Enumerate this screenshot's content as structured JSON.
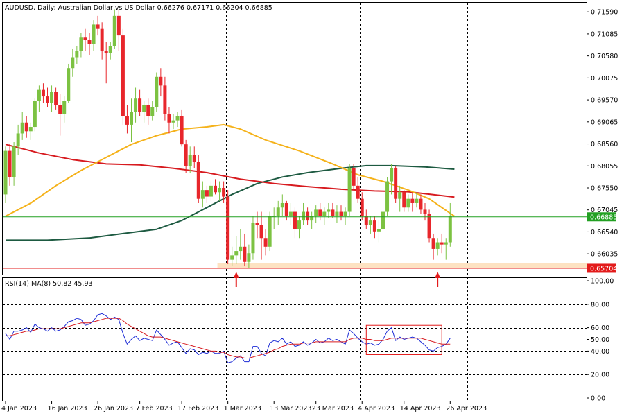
{
  "header": {
    "symbol_line": "AUDUSD, Daily:  Australian Dollar vs US Dollar  0.66276  0.67171  0.66204  0.66885"
  },
  "rsi_header": "RSI(14) MA(8) 50.82 45.93",
  "price_tags": {
    "current": "0.66885",
    "support": "0.65704"
  },
  "colors": {
    "bull": "#7cc242",
    "bear": "#e8262b",
    "ma50": "#f5b21a",
    "ma100": "#d71a1f",
    "ma200": "#1d5a41",
    "rsi": "#1c2bd6",
    "rsi_ma": "#d71a1f",
    "current_line": "#22a022",
    "support_line": "#e31b1b",
    "support_zone": "#fde2c2",
    "highlight_box": "#e31b1b",
    "arrow": "#e31b1b"
  },
  "chart_data": [
    {
      "type": "candlestick",
      "title": "AUDUSD, Daily:  Australian Dollar vs US Dollar",
      "ylim": [
        0.6556,
        0.718
      ],
      "y_ticks": [
        "0.71590",
        "0.71085",
        "0.70580",
        "0.70075",
        "0.69570",
        "0.69065",
        "0.68560",
        "0.68055",
        "0.67550",
        "0.67045",
        "0.66540",
        "0.66035"
      ],
      "x_ticks": [
        "4 Jan 2023",
        "16 Jan 2023",
        "26 Jan 2023",
        "7 Feb 2023",
        "17 Feb 2023",
        "1 Mar 2023",
        "13 Mar 2023",
        "23 Mar 2023",
        "4 Apr 2023",
        "14 Apr 2023",
        "26 Apr 2023"
      ],
      "x_tick_index": [
        0,
        11,
        22,
        32,
        42,
        53,
        64,
        74,
        85,
        95,
        106
      ],
      "month_separators": [
        0,
        21.5,
        52.5,
        84.5,
        110
      ],
      "ohlc": [
        [
          0.674,
          0.685,
          0.672,
          0.684
        ],
        [
          0.684,
          0.6855,
          0.676,
          0.678
        ],
        [
          0.678,
          0.686,
          0.676,
          0.685
        ],
        [
          0.685,
          0.69,
          0.683,
          0.688
        ],
        [
          0.688,
          0.693,
          0.6865,
          0.6905
        ],
        [
          0.6905,
          0.692,
          0.687,
          0.6885
        ],
        [
          0.6885,
          0.6905,
          0.6865,
          0.6895
        ],
        [
          0.6895,
          0.696,
          0.6885,
          0.6955
        ],
        [
          0.6955,
          0.699,
          0.693,
          0.698
        ],
        [
          0.698,
          0.6995,
          0.695,
          0.6965
        ],
        [
          0.6965,
          0.6985,
          0.694,
          0.695
        ],
        [
          0.695,
          0.699,
          0.693,
          0.6975
        ],
        [
          0.6975,
          0.6985,
          0.6935,
          0.6945
        ],
        [
          0.6945,
          0.697,
          0.6875,
          0.6925
        ],
        [
          0.6925,
          0.6965,
          0.6905,
          0.6955
        ],
        [
          0.6955,
          0.704,
          0.695,
          0.703
        ],
        [
          0.703,
          0.7075,
          0.701,
          0.7055
        ],
        [
          0.7055,
          0.708,
          0.704,
          0.707
        ],
        [
          0.707,
          0.711,
          0.7055,
          0.71
        ],
        [
          0.71,
          0.712,
          0.707,
          0.7095
        ],
        [
          0.7095,
          0.711,
          0.706,
          0.7085
        ],
        [
          0.7085,
          0.714,
          0.707,
          0.713
        ],
        [
          0.713,
          0.715,
          0.7105,
          0.712
        ],
        [
          0.712,
          0.7135,
          0.705,
          0.707
        ],
        [
          0.707,
          0.709,
          0.6995,
          0.7065
        ],
        [
          0.7065,
          0.709,
          0.705,
          0.708
        ],
        [
          0.708,
          0.7165,
          0.7075,
          0.715
        ],
        [
          0.715,
          0.7165,
          0.707,
          0.7105
        ],
        [
          0.7105,
          0.712,
          0.69,
          0.692
        ],
        [
          0.692,
          0.6945,
          0.688,
          0.69
        ],
        [
          0.69,
          0.696,
          0.686,
          0.693
        ],
        [
          0.693,
          0.6985,
          0.6905,
          0.696
        ],
        [
          0.696,
          0.698,
          0.692,
          0.693
        ],
        [
          0.693,
          0.6955,
          0.6905,
          0.6945
        ],
        [
          0.6945,
          0.696,
          0.69,
          0.692
        ],
        [
          0.692,
          0.6955,
          0.691,
          0.694
        ],
        [
          0.694,
          0.702,
          0.693,
          0.701
        ],
        [
          0.701,
          0.703,
          0.6965,
          0.699
        ],
        [
          0.699,
          0.701,
          0.691,
          0.6925
        ],
        [
          0.6925,
          0.694,
          0.688,
          0.6905
        ],
        [
          0.6905,
          0.6925,
          0.689,
          0.691
        ],
        [
          0.691,
          0.693,
          0.6895,
          0.692
        ],
        [
          0.692,
          0.6935,
          0.685,
          0.6855
        ],
        [
          0.6855,
          0.6865,
          0.679,
          0.6805
        ],
        [
          0.6805,
          0.685,
          0.679,
          0.683
        ],
        [
          0.683,
          0.685,
          0.68,
          0.6815
        ],
        [
          0.6815,
          0.683,
          0.672,
          0.673
        ],
        [
          0.673,
          0.677,
          0.671,
          0.675
        ],
        [
          0.675,
          0.676,
          0.672,
          0.6735
        ],
        [
          0.6735,
          0.677,
          0.6725,
          0.676
        ],
        [
          0.676,
          0.6775,
          0.674,
          0.6745
        ],
        [
          0.6745,
          0.677,
          0.6725,
          0.6755
        ],
        [
          0.6755,
          0.677,
          0.672,
          0.6735
        ],
        [
          0.6735,
          0.675,
          0.658,
          0.659
        ],
        [
          0.659,
          0.662,
          0.6575,
          0.66
        ],
        [
          0.66,
          0.6645,
          0.658,
          0.661
        ],
        [
          0.661,
          0.666,
          0.659,
          0.662
        ],
        [
          0.662,
          0.665,
          0.6575,
          0.6585
        ],
        [
          0.6585,
          0.6625,
          0.657,
          0.6605
        ],
        [
          0.6605,
          0.669,
          0.659,
          0.6675
        ],
        [
          0.6675,
          0.67,
          0.664,
          0.667
        ],
        [
          0.667,
          0.67,
          0.659,
          0.664
        ],
        [
          0.664,
          0.666,
          0.66,
          0.662
        ],
        [
          0.662,
          0.67,
          0.661,
          0.669
        ],
        [
          0.669,
          0.671,
          0.666,
          0.669
        ],
        [
          0.669,
          0.6725,
          0.667,
          0.671
        ],
        [
          0.671,
          0.674,
          0.669,
          0.672
        ],
        [
          0.672,
          0.6725,
          0.668,
          0.669
        ],
        [
          0.669,
          0.672,
          0.667,
          0.67
        ],
        [
          0.67,
          0.671,
          0.664,
          0.666
        ],
        [
          0.666,
          0.669,
          0.664,
          0.668
        ],
        [
          0.668,
          0.672,
          0.667,
          0.67
        ],
        [
          0.67,
          0.671,
          0.667,
          0.668
        ],
        [
          0.668,
          0.67,
          0.666,
          0.669
        ],
        [
          0.669,
          0.6715,
          0.6675,
          0.6705
        ],
        [
          0.6705,
          0.672,
          0.668,
          0.669
        ],
        [
          0.669,
          0.671,
          0.667,
          0.67
        ],
        [
          0.67,
          0.672,
          0.6685,
          0.6705
        ],
        [
          0.6705,
          0.672,
          0.6685,
          0.669
        ],
        [
          0.669,
          0.6715,
          0.6675,
          0.67
        ],
        [
          0.67,
          0.6715,
          0.668,
          0.669
        ],
        [
          0.669,
          0.671,
          0.667,
          0.67
        ],
        [
          0.67,
          0.681,
          0.669,
          0.68
        ],
        [
          0.68,
          0.681,
          0.675,
          0.676
        ],
        [
          0.676,
          0.678,
          0.672,
          0.673
        ],
        [
          0.673,
          0.6745,
          0.668,
          0.669
        ],
        [
          0.669,
          0.6705,
          0.666,
          0.667
        ],
        [
          0.667,
          0.669,
          0.665,
          0.668
        ],
        [
          0.668,
          0.669,
          0.664,
          0.6655
        ],
        [
          0.6655,
          0.668,
          0.663,
          0.666
        ],
        [
          0.666,
          0.671,
          0.665,
          0.67
        ],
        [
          0.67,
          0.678,
          0.669,
          0.677
        ],
        [
          0.677,
          0.681,
          0.674,
          0.68
        ],
        [
          0.68,
          0.6805,
          0.672,
          0.673
        ],
        [
          0.673,
          0.676,
          0.67,
          0.6745
        ],
        [
          0.6745,
          0.675,
          0.67,
          0.671
        ],
        [
          0.671,
          0.674,
          0.67,
          0.673
        ],
        [
          0.673,
          0.6745,
          0.67,
          0.672
        ],
        [
          0.672,
          0.6745,
          0.671,
          0.673
        ],
        [
          0.673,
          0.674,
          0.6695,
          0.6705
        ],
        [
          0.6705,
          0.672,
          0.668,
          0.6695
        ],
        [
          0.6695,
          0.6705,
          0.663,
          0.664
        ],
        [
          0.664,
          0.665,
          0.659,
          0.6615
        ],
        [
          0.6615,
          0.664,
          0.66,
          0.663
        ],
        [
          0.663,
          0.665,
          0.6605,
          0.6625
        ],
        [
          0.6625,
          0.664,
          0.659,
          0.663
        ],
        [
          0.663,
          0.672,
          0.662,
          0.669
        ]
      ],
      "ma50": [
        [
          0,
          0.669
        ],
        [
          6,
          0.672
        ],
        [
          12,
          0.676
        ],
        [
          18,
          0.6795
        ],
        [
          24,
          0.6825
        ],
        [
          30,
          0.6855
        ],
        [
          36,
          0.6875
        ],
        [
          42,
          0.689
        ],
        [
          48,
          0.6895
        ],
        [
          52,
          0.69
        ],
        [
          56,
          0.689
        ],
        [
          62,
          0.6865
        ],
        [
          70,
          0.684
        ],
        [
          78,
          0.681
        ],
        [
          84,
          0.6785
        ],
        [
          90,
          0.677
        ],
        [
          96,
          0.675
        ],
        [
          101,
          0.673
        ],
        [
          107,
          0.669
        ]
      ],
      "ma100": [
        [
          0,
          0.6855
        ],
        [
          8,
          0.6835
        ],
        [
          16,
          0.682
        ],
        [
          24,
          0.681
        ],
        [
          32,
          0.6808
        ],
        [
          40,
          0.68
        ],
        [
          48,
          0.679
        ],
        [
          56,
          0.6775
        ],
        [
          64,
          0.6765
        ],
        [
          72,
          0.6758
        ],
        [
          80,
          0.6752
        ],
        [
          88,
          0.6748
        ],
        [
          96,
          0.6746
        ],
        [
          107,
          0.6734
        ]
      ],
      "ma200": [
        [
          0,
          0.6635
        ],
        [
          10,
          0.6635
        ],
        [
          20,
          0.664
        ],
        [
          28,
          0.665
        ],
        [
          36,
          0.666
        ],
        [
          42,
          0.668
        ],
        [
          48,
          0.671
        ],
        [
          54,
          0.674
        ],
        [
          60,
          0.6765
        ],
        [
          66,
          0.678
        ],
        [
          72,
          0.679
        ],
        [
          80,
          0.68
        ],
        [
          86,
          0.6806
        ],
        [
          92,
          0.6806
        ],
        [
          100,
          0.6803
        ],
        [
          107,
          0.6798
        ]
      ],
      "current_price": 0.66885,
      "support_price": 0.65704,
      "support_zone": {
        "from_index": 51,
        "price_low": 0.6571,
        "price_high": 0.6582
      },
      "arrows_at_index": [
        55,
        103
      ]
    },
    {
      "type": "line",
      "title": "RSI(14) MA(8) 50.82 45.93",
      "ylim": [
        0,
        100
      ],
      "y_ticks": [
        "100.00",
        "80.00",
        "60.00",
        "50.00",
        "40.00",
        "20.00",
        "0.00"
      ],
      "y_tick_values": [
        100,
        80,
        60,
        50,
        40,
        20,
        0
      ],
      "series": [
        {
          "name": "RSI(14)",
          "values": [
            55,
            50,
            57,
            57,
            58,
            60,
            56,
            63,
            60,
            59,
            57,
            60,
            57,
            58,
            61,
            65,
            66,
            68,
            67,
            62,
            63,
            66,
            71,
            72,
            70,
            67,
            69,
            67,
            55,
            46,
            50,
            53,
            49,
            51,
            50,
            49,
            58,
            54,
            50,
            45,
            47,
            48,
            43,
            38,
            42,
            41,
            37,
            39,
            38,
            40,
            38,
            38,
            40,
            30,
            31,
            34,
            36,
            31,
            31,
            44,
            44,
            38,
            36,
            47,
            49,
            48,
            51,
            46,
            48,
            44,
            45,
            48,
            45,
            47,
            50,
            47,
            48,
            51,
            49,
            50,
            48,
            46,
            58,
            55,
            51,
            48,
            46,
            47,
            45,
            46,
            50,
            57,
            60,
            49,
            52,
            50,
            51,
            52,
            51,
            48,
            45,
            41,
            40,
            43,
            44,
            46,
            51
          ]
        },
        {
          "name": "MA(8)",
          "values": [
            53,
            53,
            54,
            55,
            56,
            57,
            57,
            58,
            59,
            59,
            59,
            59,
            59,
            59,
            60,
            61,
            62,
            63,
            64,
            64,
            64,
            65,
            66,
            67,
            68,
            68,
            68,
            68,
            66,
            63,
            61,
            59,
            57,
            55,
            53,
            52,
            52,
            52,
            51,
            50,
            49,
            48,
            47,
            46,
            45,
            44,
            43,
            42,
            41,
            40,
            40,
            39,
            39,
            37,
            36,
            35,
            35,
            34,
            34,
            35,
            36,
            37,
            38,
            39,
            41,
            42,
            44,
            45,
            46,
            46,
            46,
            47,
            47,
            47,
            48,
            48,
            48,
            48,
            48,
            48,
            48,
            48,
            50,
            51,
            51,
            51,
            50,
            50,
            49,
            49,
            49,
            50,
            51,
            51,
            51,
            51,
            51,
            51,
            51,
            51,
            50,
            49,
            48,
            47,
            46,
            46,
            46
          ]
        }
      ],
      "highlight_box": {
        "from_index": 86,
        "to_index": 104,
        "value_low": 37,
        "value_high": 62
      }
    }
  ]
}
